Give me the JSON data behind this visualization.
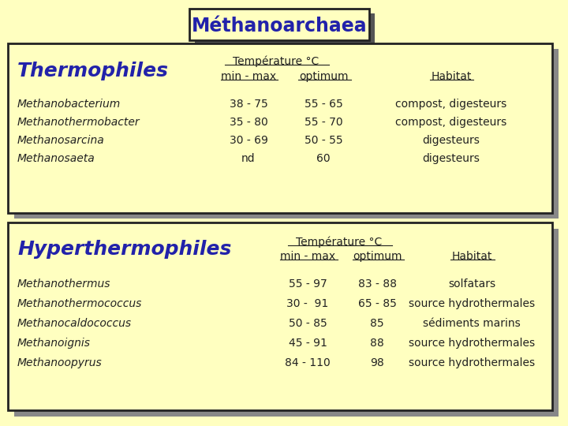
{
  "bg_color": "#FFFFC0",
  "title": "Méthanoarchaea",
  "title_color": "#2222AA",
  "box_bg": "#FFFFC0",
  "box_border": "#222222",
  "section1_title": "Thermophiles",
  "section2_title": "Hyperthermophiles",
  "header_temp": "Température °C",
  "header_minmax": "min - max",
  "header_optimum": "optimum",
  "header_habitat": "Habitat",
  "data_color": "#222222",
  "title_color_blue": "#2222AA",
  "thermo_organisms": [
    "Methanobacterium",
    "Methanothermobacter",
    "Methanosarcina",
    "Methanosaeta"
  ],
  "thermo_minmax": [
    "38 - 75",
    "35 - 80",
    "30 - 69",
    "nd"
  ],
  "thermo_optimum": [
    "55 - 65",
    "55 - 70",
    "50 - 55",
    "60"
  ],
  "thermo_habitat": [
    "compost, digesteurs",
    "compost, digesteurs",
    "digesteurs",
    "digesteurs"
  ],
  "hyper_organisms": [
    "Methanothermus",
    "Methanothermococcus",
    "Methanocaldococcus",
    "Methanoignis",
    "Methanoopyrus"
  ],
  "hyper_minmax": [
    "55 - 97",
    "30 -  91",
    "50 - 85",
    "45 - 91",
    "84 - 110"
  ],
  "hyper_optimum": [
    "83 - 88",
    "65 - 85",
    "85",
    "88",
    "98"
  ],
  "hyper_habitat": [
    "solfatars",
    "source hydrothermales",
    "sédiments marins",
    "source hydrothermales",
    "source hydrothermales"
  ]
}
